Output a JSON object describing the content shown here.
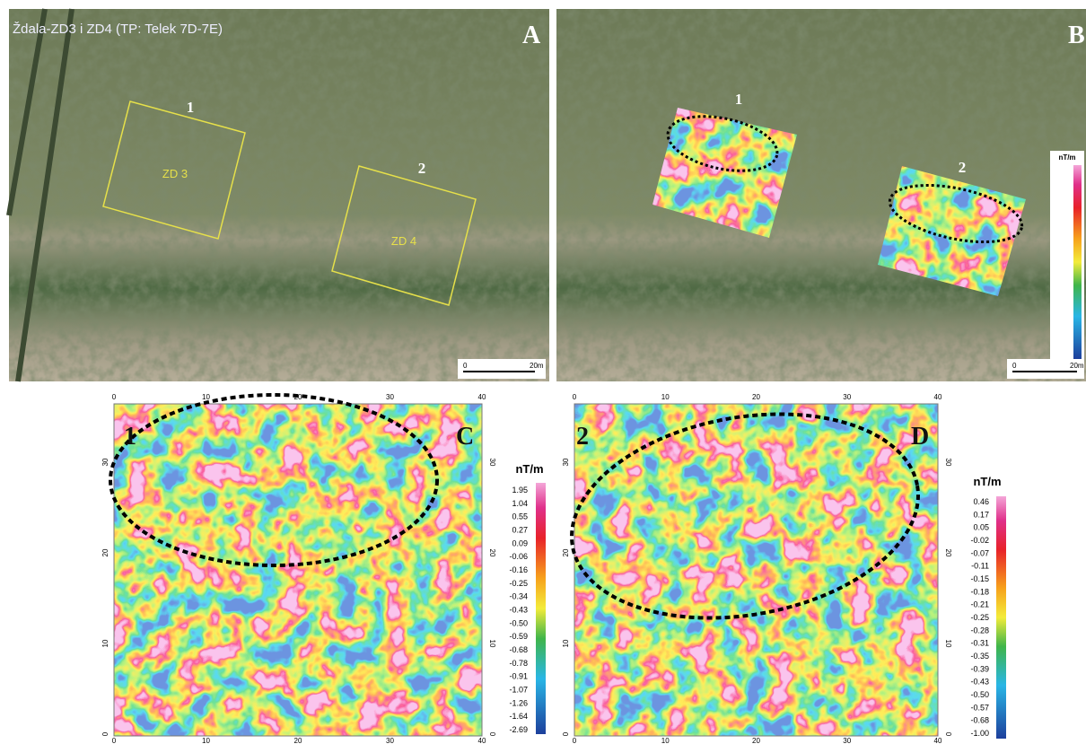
{
  "title": "Ždala-ZD3 i ZD4 (TP: Telek 7D-7E)",
  "panel_a": {
    "letter": "A",
    "areas": [
      {
        "number": "1",
        "label": "ZD 3"
      },
      {
        "number": "2",
        "label": "ZD 4"
      }
    ],
    "scale": {
      "start": "0",
      "end": "20m"
    }
  },
  "panel_b": {
    "letter": "B",
    "areas": [
      "1",
      "2"
    ],
    "unit": "nT/m",
    "scale": {
      "start": "0",
      "end": "20m"
    }
  },
  "panel_c": {
    "letter": "C",
    "area": "1",
    "unit": "nT/m",
    "x_ticks": [
      0,
      10,
      20,
      30,
      40
    ],
    "y_ticks": [
      0,
      10,
      20,
      30
    ],
    "legend": [
      "1.95",
      "1.04",
      "0.55",
      "0.27",
      "0.09",
      "-0.06",
      "-0.16",
      "-0.25",
      "-0.34",
      "-0.43",
      "-0.50",
      "-0.59",
      "-0.68",
      "-0.78",
      "-0.91",
      "-1.07",
      "-1.26",
      "-1.64",
      "-2.69"
    ]
  },
  "panel_d": {
    "letter": "D",
    "area": "2",
    "unit": "nT/m",
    "x_ticks": [
      0,
      10,
      20,
      30,
      40
    ],
    "y_ticks": [
      0,
      10,
      20,
      30
    ],
    "legend": [
      "0.46",
      "0.17",
      "0.05",
      "-0.02",
      "-0.07",
      "-0.11",
      "-0.15",
      "-0.18",
      "-0.21",
      "-0.25",
      "-0.28",
      "-0.31",
      "-0.35",
      "-0.39",
      "-0.43",
      "-0.50",
      "-0.57",
      "-0.68",
      "-1.00"
    ]
  }
}
